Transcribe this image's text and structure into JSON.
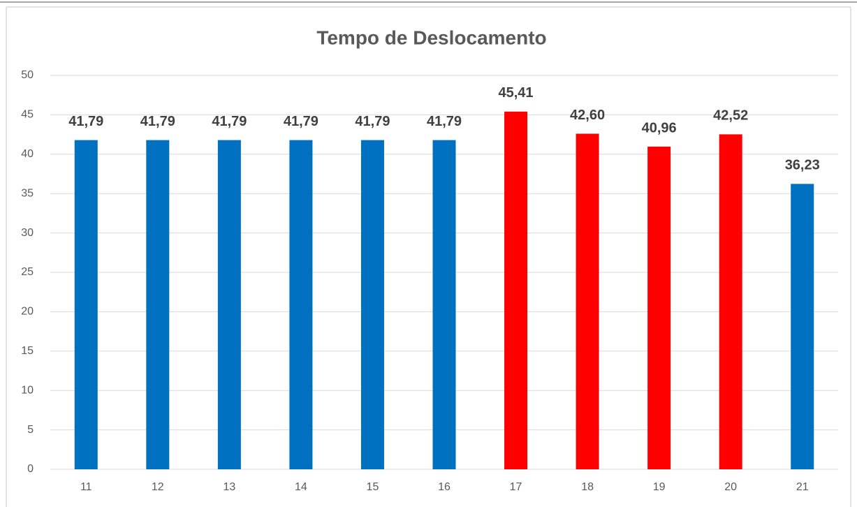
{
  "chart_data": {
    "type": "bar",
    "title": "Tempo de Deslocamento",
    "categories": [
      "11",
      "12",
      "13",
      "14",
      "15",
      "16",
      "17",
      "18",
      "19",
      "20",
      "21"
    ],
    "values": [
      41.79,
      41.79,
      41.79,
      41.79,
      41.79,
      41.79,
      45.41,
      42.6,
      40.96,
      42.52,
      36.23
    ],
    "value_labels": [
      "41,79",
      "41,79",
      "41,79",
      "41,79",
      "41,79",
      "41,79",
      "45,41",
      "42,60",
      "40,96",
      "42,52",
      "36,23"
    ],
    "colors": [
      "#0070c0",
      "#0070c0",
      "#0070c0",
      "#0070c0",
      "#0070c0",
      "#0070c0",
      "#ff0000",
      "#ff0000",
      "#ff0000",
      "#ff0000",
      "#0070c0"
    ],
    "ylim": [
      0,
      50
    ],
    "yticks": [
      0,
      5,
      10,
      15,
      20,
      25,
      30,
      35,
      40,
      45,
      50
    ],
    "grid": true
  }
}
